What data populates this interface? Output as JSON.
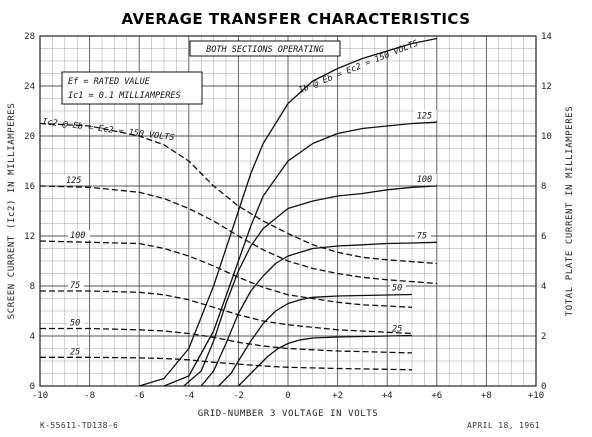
{
  "chart_data": {
    "type": "line",
    "title": "AVERAGE TRANSFER CHARACTERISTICS",
    "xlabel": "GRID-NUMBER 3 VOLTAGE IN VOLTS",
    "ylabel_left": "SCREEN CURRENT (Ic2) IN MILLIAMPERES",
    "ylabel_right": "TOTAL PLATE CURRENT IN MILLIAMPERES",
    "xlim": [
      -10,
      10
    ],
    "ylim_left": [
      0,
      28
    ],
    "ylim_right": [
      0,
      14
    ],
    "x_ticks": [
      -10,
      -8,
      -6,
      -4,
      -2,
      0,
      2,
      4,
      6,
      8,
      10
    ],
    "x_tick_labels": [
      "-10",
      "-8",
      "-6",
      "-4",
      "-2",
      "0",
      "+2",
      "+4",
      "+6",
      "+8",
      "+10"
    ],
    "y_left_ticks": [
      0,
      4,
      8,
      12,
      16,
      20,
      24,
      28
    ],
    "y_right_ticks": [
      0,
      2,
      4,
      6,
      8,
      10,
      12,
      14
    ],
    "grid": true,
    "box_note": "BOTH SECTIONS OPERATING",
    "condition_lines": [
      "Ef = RATED VALUE",
      "Ic1 = 0.1 MILLIAMPERES"
    ],
    "plate_label_text": "Ib @ Eb = Ec2 = 150 VOLTS",
    "screen_label_text": "Ic2 @ Eb = Ec2 = 150 VOLTS",
    "footer_left": "K-55611-TD138-6",
    "footer_right": "APRIL 18, 1961",
    "plate_series": [
      {
        "label": "",
        "x": [
          -6.0,
          -5.0,
          -4.0,
          -3.0,
          -2.5,
          -2.0,
          -1.5,
          -1.0,
          0.0,
          1.0,
          2.0,
          3.0,
          4.0,
          5.0,
          6.0
        ],
        "y": [
          0.0,
          0.3,
          1.5,
          4.0,
          5.5,
          7.0,
          8.5,
          9.7,
          11.3,
          12.2,
          12.7,
          13.1,
          13.4,
          13.7,
          13.9
        ]
      },
      {
        "label": "125",
        "x": [
          -5.0,
          -4.0,
          -3.0,
          -2.0,
          -1.5,
          -1.0,
          0.0,
          1.0,
          2.0,
          3.0,
          4.0,
          5.0,
          6.0
        ],
        "y": [
          0.0,
          0.4,
          2.2,
          5.0,
          6.4,
          7.6,
          9.0,
          9.7,
          10.1,
          10.3,
          10.4,
          10.5,
          10.55
        ]
      },
      {
        "label": "100",
        "x": [
          -4.2,
          -3.5,
          -3.0,
          -2.5,
          -2.0,
          -1.5,
          -1.0,
          0.0,
          1.0,
          2.0,
          3.0,
          4.0,
          5.0,
          6.0
        ],
        "y": [
          0.0,
          0.6,
          1.8,
          3.3,
          4.6,
          5.6,
          6.3,
          7.1,
          7.4,
          7.6,
          7.7,
          7.85,
          7.95,
          8.0
        ]
      },
      {
        "label": "75",
        "x": [
          -3.5,
          -3.0,
          -2.5,
          -2.0,
          -1.5,
          -1.0,
          -0.5,
          0.0,
          1.0,
          2.0,
          3.0,
          4.0,
          5.0,
          6.0
        ],
        "y": [
          0.0,
          0.6,
          1.7,
          2.9,
          3.8,
          4.4,
          4.9,
          5.2,
          5.5,
          5.6,
          5.65,
          5.7,
          5.72,
          5.75
        ]
      },
      {
        "label": "50",
        "x": [
          -2.8,
          -2.3,
          -2.0,
          -1.5,
          -1.0,
          -0.5,
          0.0,
          0.5,
          1.0,
          2.0,
          3.0,
          4.0,
          5.0
        ],
        "y": [
          0.0,
          0.5,
          1.0,
          1.8,
          2.5,
          3.0,
          3.3,
          3.45,
          3.55,
          3.6,
          3.62,
          3.64,
          3.66
        ]
      },
      {
        "label": "25",
        "x": [
          -2.0,
          -1.6,
          -1.2,
          -0.8,
          -0.4,
          0.0,
          0.5,
          1.0,
          2.0,
          3.0,
          4.0,
          5.0
        ],
        "y": [
          0.0,
          0.4,
          0.8,
          1.2,
          1.5,
          1.7,
          1.85,
          1.92,
          1.96,
          1.98,
          2.0,
          2.02
        ]
      }
    ],
    "screen_series": [
      {
        "label": "",
        "x": [
          -10.0,
          -8.0,
          -6.0,
          -5.0,
          -4.0,
          -3.5,
          -3.0,
          -2.5,
          -2.0,
          -1.5,
          -1.0,
          0.0,
          1.0,
          2.0,
          3.0,
          4.0,
          6.0
        ],
        "y": [
          21.0,
          20.8,
          20.0,
          19.3,
          18.0,
          17.0,
          16.0,
          15.2,
          14.4,
          13.8,
          13.2,
          12.2,
          11.3,
          10.7,
          10.3,
          10.1,
          9.8
        ]
      },
      {
        "label": "125",
        "x": [
          -10.0,
          -8.0,
          -6.0,
          -5.0,
          -4.0,
          -3.0,
          -2.0,
          -1.0,
          0.0,
          1.0,
          2.0,
          3.0,
          4.0,
          5.0,
          6.0
        ],
        "y": [
          16.0,
          15.9,
          15.5,
          15.0,
          14.2,
          13.2,
          12.0,
          10.9,
          10.0,
          9.4,
          9.0,
          8.7,
          8.5,
          8.35,
          8.2
        ]
      },
      {
        "label": "100",
        "x": [
          -10.0,
          -8.0,
          -6.0,
          -5.0,
          -4.0,
          -3.0,
          -2.0,
          -1.0,
          0.0,
          1.0,
          2.0,
          3.0,
          4.0,
          5.0
        ],
        "y": [
          11.6,
          11.5,
          11.4,
          11.0,
          10.4,
          9.6,
          8.7,
          7.9,
          7.3,
          7.0,
          6.7,
          6.5,
          6.4,
          6.3
        ]
      },
      {
        "label": "75",
        "x": [
          -10.0,
          -8.0,
          -6.0,
          -5.0,
          -4.0,
          -3.0,
          -2.0,
          -1.0,
          0.0,
          1.0,
          2.0,
          3.0,
          4.0,
          5.0
        ],
        "y": [
          7.6,
          7.6,
          7.5,
          7.3,
          6.9,
          6.3,
          5.7,
          5.2,
          4.9,
          4.7,
          4.5,
          4.4,
          4.3,
          4.2
        ]
      },
      {
        "label": "50",
        "x": [
          -10.0,
          -8.0,
          -6.0,
          -5.0,
          -4.0,
          -3.0,
          -2.0,
          -1.0,
          0.0,
          1.0,
          2.0,
          3.0,
          4.0,
          5.0
        ],
        "y": [
          4.6,
          4.6,
          4.5,
          4.4,
          4.2,
          3.9,
          3.5,
          3.2,
          3.0,
          2.9,
          2.8,
          2.75,
          2.7,
          2.65
        ]
      },
      {
        "label": "25",
        "x": [
          -10.0,
          -8.0,
          -6.0,
          -5.0,
          -4.0,
          -3.0,
          -2.0,
          -1.0,
          0.0,
          1.0,
          2.0,
          3.0,
          4.0,
          5.0
        ],
        "y": [
          2.3,
          2.3,
          2.25,
          2.2,
          2.1,
          1.9,
          1.75,
          1.6,
          1.5,
          1.45,
          1.4,
          1.37,
          1.34,
          1.3
        ]
      }
    ]
  }
}
